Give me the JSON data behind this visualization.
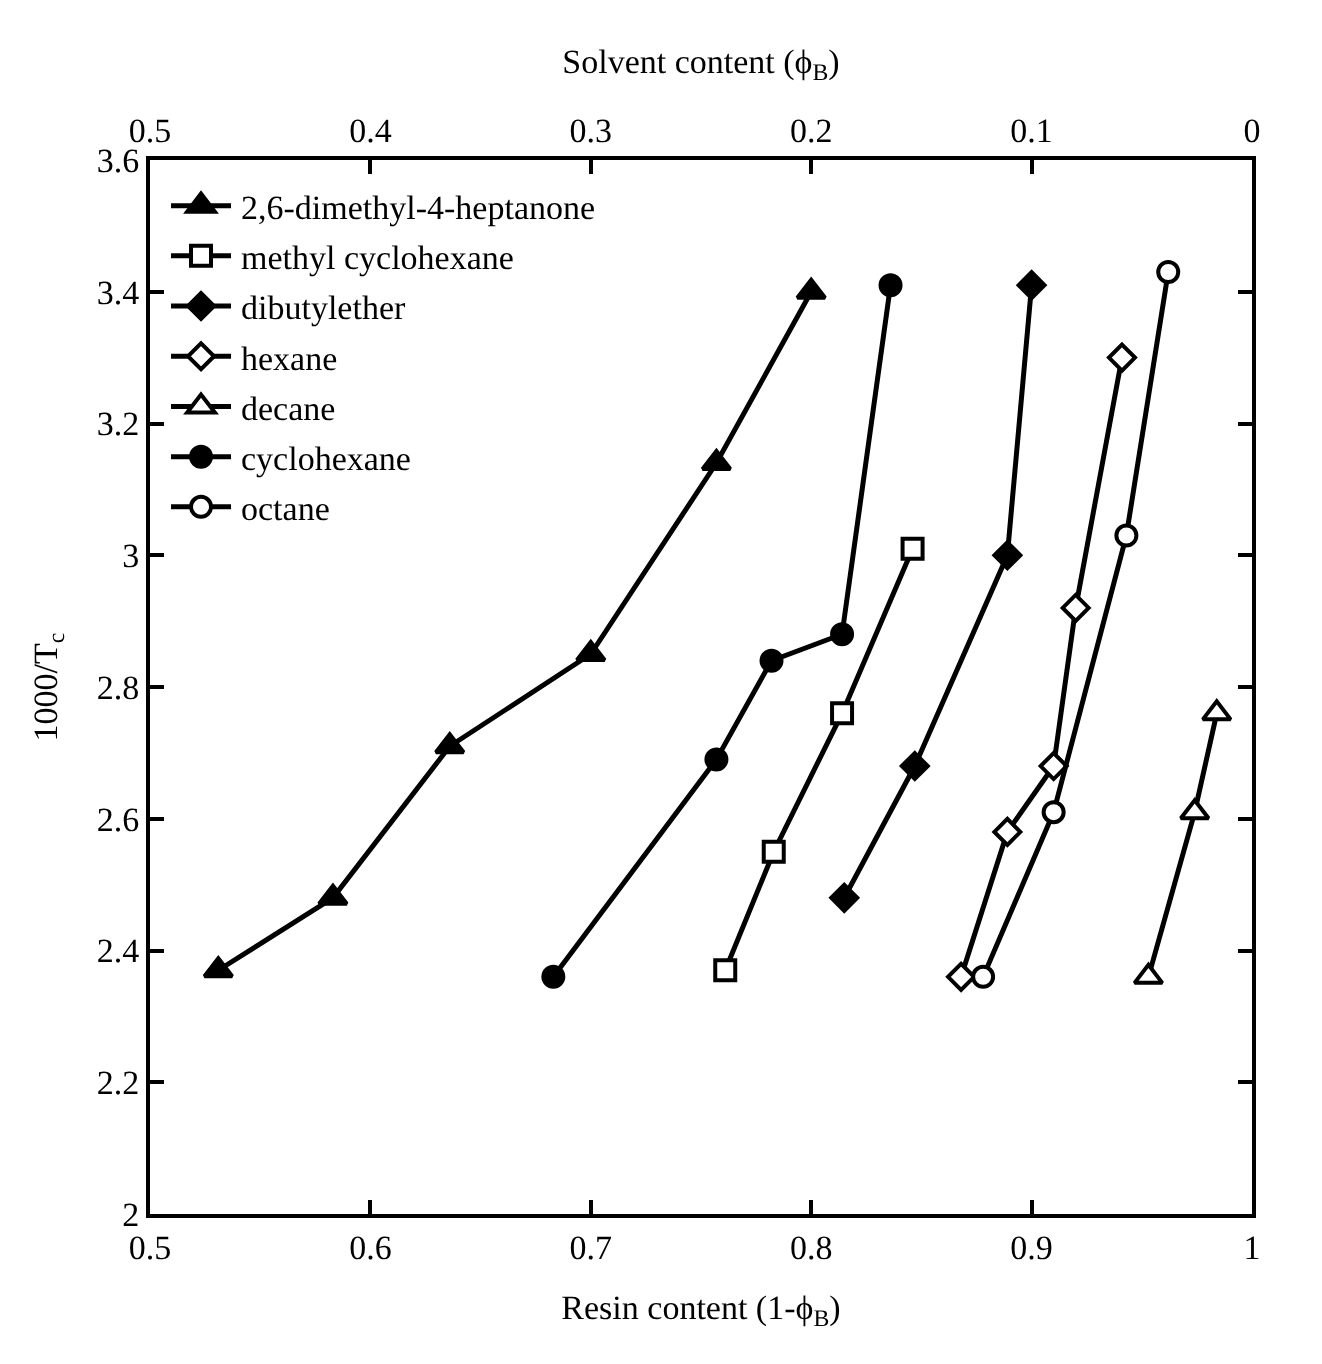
{
  "chart_data": {
    "type": "line",
    "xlabel": "Resin content (1-ϕ$_{B}$)",
    "x2label": "Solvent content (ϕ$_{B}$)",
    "ylabel": "1000/T$_{c}$",
    "xlim": [
      0.5,
      1
    ],
    "xticks": [
      0.5,
      0.6,
      0.7,
      0.8,
      0.9,
      1
    ],
    "x2lim": [
      0.5,
      0
    ],
    "x2ticks": [
      0.5,
      0.4,
      0.3,
      0.2,
      0.1,
      0
    ],
    "ylim": [
      2,
      3.6
    ],
    "yticks": [
      2,
      2.2,
      2.4,
      2.6,
      2.8,
      3,
      3.2,
      3.4,
      3.6
    ],
    "legend": "top left",
    "line_style": "solid",
    "series": [
      {
        "name": "2,6-dimethyl-4-heptanone",
        "color": "#000000",
        "marker": "triangle",
        "colors": [
          "#000000",
          "#000000",
          "#000000",
          "#000000",
          "#000000",
          "#000000"
        ],
        "x": [
          0.531,
          0.583,
          0.636,
          0.7,
          0.757,
          0.8
        ],
        "values": [
          2.37,
          2.48,
          2.71,
          2.85,
          3.14,
          3.4
        ]
      },
      {
        "name": "methyl cyclohexane",
        "color": "#000000",
        "marker": "square",
        "colors": [
          "#ffffff",
          "#ffffff",
          "#ffffff",
          "#ffffff"
        ],
        "x": [
          0.761,
          0.783,
          0.814,
          0.846
        ],
        "values": [
          2.37,
          2.55,
          2.76,
          3.01
        ]
      },
      {
        "name": "dibutylether",
        "color": "#000000",
        "marker": "diamond",
        "colors": [
          "#000000",
          "#000000",
          "#000000",
          "#000000"
        ],
        "x": [
          0.815,
          0.847,
          0.889,
          0.9
        ],
        "values": [
          2.48,
          2.68,
          3.0,
          3.41
        ]
      },
      {
        "name": "hexane",
        "color": "#000000",
        "marker": "diamond",
        "colors": [
          "#ffffff",
          "#ffffff",
          "#ffffff",
          "#ffffff",
          "#ffffff"
        ],
        "x": [
          0.868,
          0.889,
          0.91,
          0.92,
          0.941
        ],
        "values": [
          2.36,
          2.58,
          2.68,
          2.92,
          3.3
        ]
      },
      {
        "name": "decane",
        "color": "#000000",
        "marker": "triangle",
        "colors": [
          "#ffffff",
          "#ffffff",
          "#ffffff"
        ],
        "x": [
          0.953,
          0.974,
          0.984
        ],
        "values": [
          2.36,
          2.61,
          2.76
        ]
      },
      {
        "name": "cyclohexane",
        "color": "#000000",
        "marker": "circle",
        "colors": [
          "#000000",
          "#000000",
          "#000000",
          "#000000",
          "#000000"
        ],
        "x": [
          0.683,
          0.757,
          0.782,
          0.814,
          0.836
        ],
        "values": [
          2.36,
          2.69,
          2.84,
          2.88,
          3.41
        ]
      },
      {
        "name": "octane",
        "color": "#000000",
        "marker": "circle",
        "colors": [
          "#ffffff",
          "#ffffff",
          "#ffffff",
          "#ffffff"
        ],
        "x": [
          0.878,
          0.91,
          0.943,
          0.962
        ],
        "values": [
          2.36,
          2.61,
          3.03,
          3.43
        ]
      }
    ]
  }
}
